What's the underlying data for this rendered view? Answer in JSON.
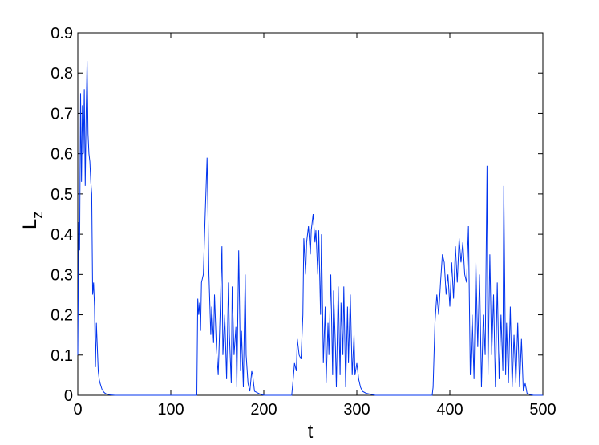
{
  "chart_data": {
    "type": "line",
    "xlabel": "t",
    "ylabel": "L",
    "ylabel_subscript": "z",
    "xlim": [
      0,
      500
    ],
    "ylim": [
      0,
      0.9
    ],
    "xticks": [
      0,
      100,
      200,
      300,
      400,
      500
    ],
    "yticks": [
      0,
      0.1,
      0.2,
      0.3,
      0.4,
      0.5,
      0.6,
      0.7,
      0.8,
      0.9
    ],
    "series": [
      {
        "color": "#0033ee",
        "x": [
          0,
          1,
          2,
          3,
          4,
          5,
          6,
          7,
          8,
          9,
          10,
          11,
          12,
          13,
          14,
          15,
          16,
          17,
          18,
          19,
          20,
          21,
          22,
          23,
          24,
          26,
          28,
          30,
          35,
          40,
          128,
          129,
          130,
          131,
          132,
          133,
          135,
          137,
          139,
          140,
          141,
          143,
          144,
          146,
          147,
          149,
          151,
          153,
          155,
          156,
          158,
          160,
          162,
          163,
          165,
          166,
          168,
          170,
          171,
          173,
          175,
          176,
          178,
          180,
          181,
          183,
          185,
          187,
          188,
          190,
          195,
          200,
          230,
          232,
          233,
          235,
          236,
          238,
          240,
          242,
          243,
          245,
          246,
          248,
          250,
          251,
          253,
          255,
          256,
          258,
          259,
          261,
          262,
          264,
          266,
          267,
          269,
          270,
          272,
          274,
          275,
          277,
          278,
          280,
          282,
          283,
          285,
          286,
          288,
          290,
          291,
          293,
          295,
          297,
          298,
          300,
          302,
          304,
          306,
          310,
          320,
          381,
          382,
          384,
          386,
          388,
          390,
          392,
          394,
          396,
          398,
          400,
          402,
          404,
          406,
          408,
          410,
          412,
          414,
          416,
          418,
          420,
          422,
          424,
          426,
          428,
          430,
          432,
          434,
          436,
          438,
          440,
          441,
          443,
          445,
          447,
          449,
          451,
          453,
          455,
          457,
          458,
          460,
          461,
          463,
          465,
          467,
          469,
          471,
          473,
          475,
          477,
          479,
          481,
          483,
          486,
          490,
          500
        ],
        "values": [
          0.1,
          0.43,
          0.36,
          0.75,
          0.53,
          0.72,
          0.6,
          0.76,
          0.52,
          0.7,
          0.83,
          0.65,
          0.6,
          0.58,
          0.53,
          0.5,
          0.25,
          0.28,
          0.22,
          0.07,
          0.18,
          0.12,
          0.06,
          0.04,
          0.03,
          0.015,
          0.008,
          0.004,
          0.001,
          0,
          0,
          0.24,
          0.2,
          0.23,
          0.16,
          0.28,
          0.3,
          0.45,
          0.59,
          0.45,
          0.3,
          0.15,
          0.22,
          0.13,
          0.25,
          0.12,
          0.05,
          0.2,
          0.37,
          0.1,
          0.2,
          0.04,
          0.28,
          0.15,
          0.03,
          0.27,
          0.1,
          0.17,
          0.02,
          0.36,
          0.06,
          0.16,
          0.02,
          0.3,
          0.1,
          0.03,
          0.01,
          0.06,
          0.05,
          0.01,
          0.004,
          0,
          0,
          0.05,
          0.08,
          0.06,
          0.14,
          0.1,
          0.09,
          0.2,
          0.39,
          0.3,
          0.38,
          0.42,
          0.35,
          0.41,
          0.45,
          0.38,
          0.41,
          0.3,
          0.41,
          0.2,
          0.4,
          0.08,
          0.22,
          0.03,
          0.18,
          0.1,
          0.3,
          0.05,
          0.26,
          0.12,
          0.02,
          0.27,
          0.05,
          0.23,
          0.1,
          0.27,
          0.02,
          0.22,
          0.08,
          0.25,
          0.05,
          0.15,
          0.05,
          0.08,
          0.04,
          0.02,
          0.01,
          0.005,
          0,
          0,
          0.02,
          0.18,
          0.25,
          0.2,
          0.28,
          0.35,
          0.33,
          0.25,
          0.3,
          0.22,
          0.33,
          0.24,
          0.37,
          0.28,
          0.39,
          0.33,
          0.38,
          0.3,
          0.28,
          0.42,
          0.05,
          0.2,
          0.04,
          0.33,
          0.12,
          0.3,
          0.02,
          0.2,
          0.1,
          0.57,
          0.05,
          0.35,
          0.1,
          0.25,
          0.02,
          0.28,
          0.04,
          0.2,
          0.06,
          0.52,
          0.05,
          0.18,
          0.03,
          0.22,
          0.02,
          0.15,
          0.03,
          0.18,
          0.02,
          0.14,
          0.01,
          0.03,
          0.005,
          0.002,
          0,
          0
        ]
      }
    ]
  }
}
